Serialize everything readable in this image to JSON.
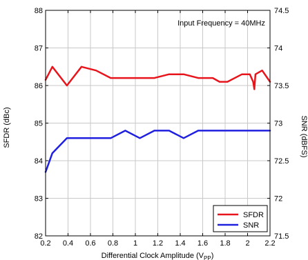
{
  "chart_data": {
    "type": "line",
    "annotation": "Input Frequency = 40MHz",
    "xlabel_main": "Differential Clock Amplitude (V",
    "xlabel_sub": "PP",
    "xlabel_close": ")",
    "ylabel_left": "SFDR (dBc)",
    "ylabel_right": "SNR (dBFS)",
    "xlim": [
      0.2,
      2.2
    ],
    "ylim_left": [
      82,
      88
    ],
    "ylim_right": [
      71.5,
      74.5
    ],
    "x_ticks": [
      "0.2",
      "0.4",
      "0.6",
      "0.8",
      "1",
      "1.2",
      "1.4",
      "1.6",
      "1.8",
      "2",
      "2.2"
    ],
    "y_left_ticks": [
      "82",
      "83",
      "84",
      "85",
      "86",
      "87",
      "88"
    ],
    "y_right_ticks": [
      "71.5",
      "72",
      "72.5",
      "73",
      "73.5",
      "74",
      "74.5"
    ],
    "grid": true,
    "legend_position": "bottom-right",
    "series": [
      {
        "name": "SFDR",
        "axis": "left",
        "color": "#e8141c",
        "x": [
          0.2,
          0.26,
          0.39,
          0.52,
          0.65,
          0.78,
          0.91,
          1.04,
          1.17,
          1.3,
          1.43,
          1.56,
          1.69,
          1.75,
          1.82,
          1.95,
          2.02,
          2.05,
          2.06,
          2.07,
          2.13,
          2.2
        ],
        "y": [
          86.15,
          86.5,
          86.0,
          86.5,
          86.4,
          86.2,
          86.2,
          86.2,
          86.2,
          86.3,
          86.3,
          86.2,
          86.2,
          86.1,
          86.1,
          86.3,
          86.3,
          86.1,
          85.9,
          86.3,
          86.4,
          86.1
        ]
      },
      {
        "name": "SNR",
        "axis": "right",
        "color": "#1f1fe0",
        "x": [
          0.2,
          0.26,
          0.39,
          0.52,
          0.65,
          0.78,
          0.91,
          1.04,
          1.17,
          1.3,
          1.43,
          1.56,
          1.69,
          1.82,
          1.95,
          2.08,
          2.2
        ],
        "y": [
          72.35,
          72.6,
          72.8,
          72.8,
          72.8,
          72.8,
          72.9,
          72.8,
          72.9,
          72.9,
          72.8,
          72.9,
          72.9,
          72.9,
          72.9,
          72.9,
          72.9
        ]
      }
    ]
  }
}
